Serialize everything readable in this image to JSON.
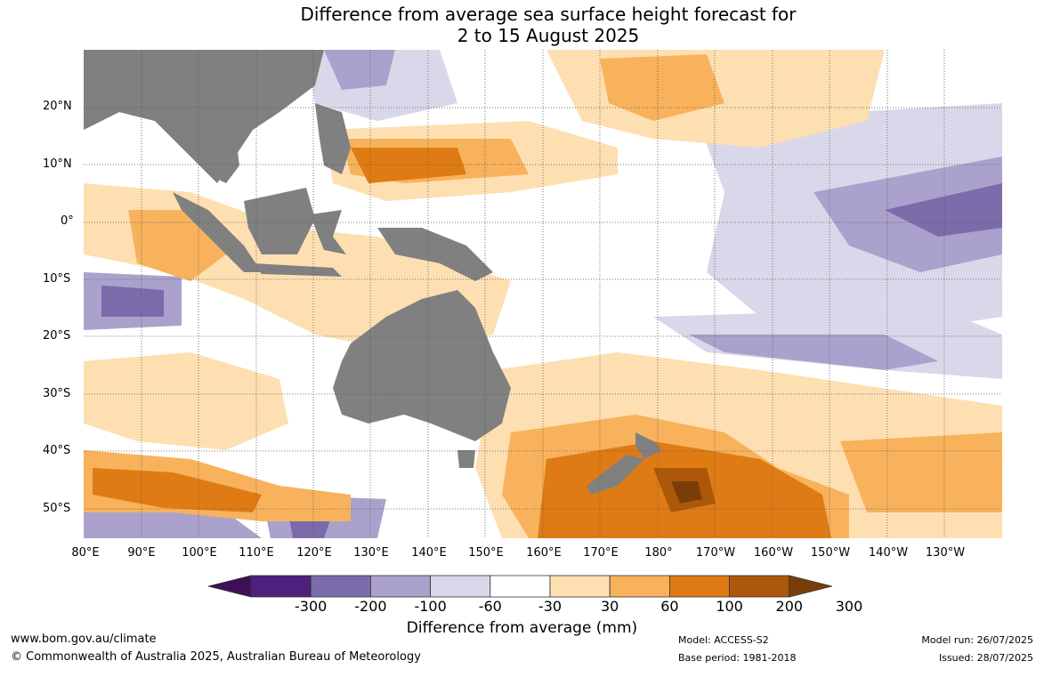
{
  "title_line1": "Difference from average sea surface height forecast for",
  "title_line2": "2 to 15 August 2025",
  "lat_labels": [
    "20°N",
    "10°N",
    "0°",
    "10°S",
    "20°S",
    "30°S",
    "40°S",
    "50°S"
  ],
  "lon_labels": [
    "80°E",
    "90°E",
    "100°E",
    "110°E",
    "120°E",
    "130°E",
    "140°E",
    "150°E",
    "160°E",
    "170°E",
    "180°",
    "170°W",
    "160°W",
    "150°W",
    "140°W",
    "130°W"
  ],
  "colorbar": {
    "colors": [
      "#3f0f57",
      "#4f1f7e",
      "#7c6bab",
      "#aaa2cc",
      "#d8d8ea",
      "#ffffff",
      "#fedfb2",
      "#f8b25c",
      "#df7b14",
      "#ad5708",
      "#7a3d0a"
    ],
    "tick_labels": [
      "-300",
      "-200",
      "-100",
      "-60",
      "-30",
      "30",
      "60",
      "100",
      "200",
      "300"
    ],
    "title": "Difference from average (mm)"
  },
  "footer": {
    "website": "www.bom.gov.au/climate",
    "copyright": "© Commonwealth of Australia 2025, Australian Bureau of Meteorology",
    "model": "Model: ACCESS-S2",
    "base_period": "Base period: 1981-2018",
    "model_run": "Model run: 26/07/2025",
    "issued": "Issued: 28/07/2025"
  },
  "colors": {
    "land": "#808080",
    "grid": "#555555"
  }
}
